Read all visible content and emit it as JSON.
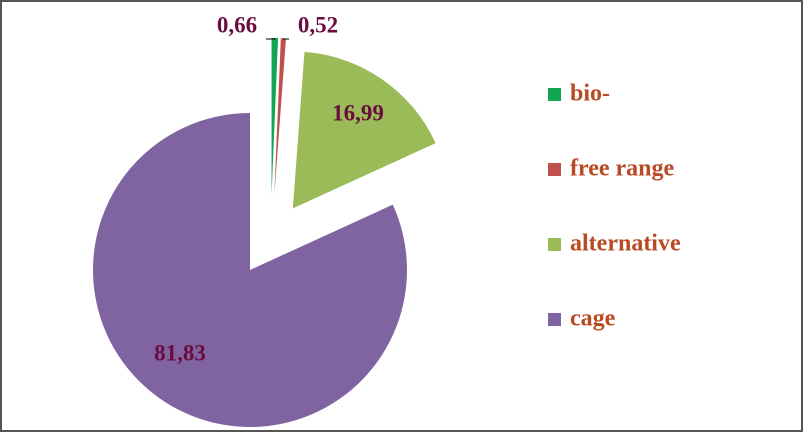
{
  "chart_data": {
    "type": "pie",
    "categories": [
      "bio-",
      "free range",
      "alternative",
      "cage"
    ],
    "values": [
      0.66,
      0.52,
      16.99,
      81.83
    ],
    "value_labels": [
      "0,66",
      "0,52",
      "16,99",
      "81,83"
    ],
    "colors": [
      "#13a454",
      "#c0504d",
      "#9bbb59",
      "#8064a2"
    ],
    "legend": "right"
  }
}
